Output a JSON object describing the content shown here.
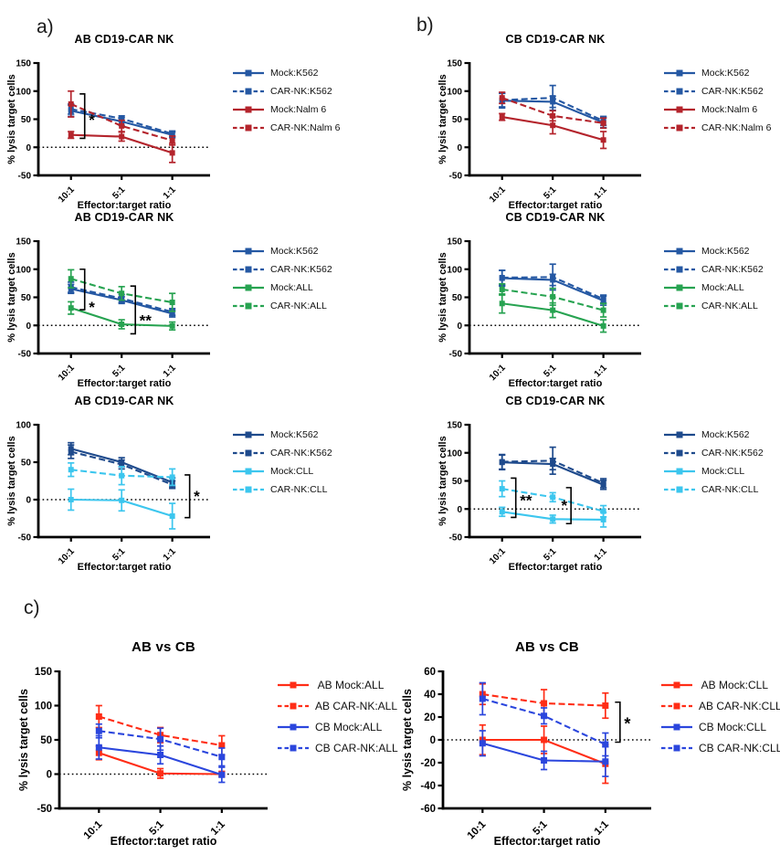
{
  "panels": {
    "a": "a)",
    "b": "b)",
    "c": "c)"
  },
  "chart_data": [
    {
      "type": "line",
      "panel": "a",
      "title": "AB CD19-CAR NK",
      "xlabel": "Effector:target ratio",
      "ylabel": "% lysis target cells",
      "categories": [
        "10:1",
        "5:1",
        "1:1"
      ],
      "ylim": [
        -50,
        150
      ],
      "yticks": [
        150,
        100,
        50,
        0,
        -50
      ],
      "zero_line": true,
      "series": [
        {
          "name": "Mock:K562",
          "color": "#2558A3",
          "dash": false,
          "values": [
            65,
            46,
            22
          ],
          "errors": [
            10,
            7,
            5
          ]
        },
        {
          "name": "CAR-NK:K562",
          "color": "#2558A3",
          "dash": true,
          "values": [
            68,
            51,
            24
          ],
          "errors": [
            9,
            5,
            5
          ]
        },
        {
          "name": "Mock:Nalm 6",
          "color": "#B4242C",
          "dash": false,
          "values": [
            22,
            19,
            -10
          ],
          "errors": [
            6,
            8,
            17
          ]
        },
        {
          "name": "CAR-NK:Nalm 6",
          "color": "#B4242C",
          "dash": true,
          "values": [
            77,
            38,
            12
          ],
          "errors": [
            23,
            10,
            8
          ]
        }
      ],
      "significance": [
        {
          "at": 0,
          "top": 95,
          "bottom": 16,
          "label": "*",
          "labelY": 55,
          "side": "right"
        }
      ]
    },
    {
      "type": "line",
      "panel": "a",
      "title": "AB CD19-CAR NK",
      "xlabel": "Effector:target ratio",
      "ylabel": "% lysis target cells",
      "categories": [
        "10:1",
        "5:1",
        "1:1"
      ],
      "ylim": [
        -50,
        150
      ],
      "yticks": [
        150,
        100,
        50,
        0,
        -50
      ],
      "zero_line": true,
      "series": [
        {
          "name": "Mock:K562",
          "color": "#2558A3",
          "dash": false,
          "values": [
            65,
            45,
            21
          ],
          "errors": [
            8,
            6,
            6
          ]
        },
        {
          "name": "CAR-NK:K562",
          "color": "#2558A3",
          "dash": true,
          "values": [
            68,
            48,
            24
          ],
          "errors": [
            9,
            7,
            6
          ]
        },
        {
          "name": "Mock:ALL",
          "color": "#27A351",
          "dash": false,
          "values": [
            31,
            2,
            -1
          ],
          "errors": [
            11,
            8,
            7
          ]
        },
        {
          "name": "CAR-NK:ALL",
          "color": "#27A351",
          "dash": true,
          "values": [
            83,
            57,
            41
          ],
          "errors": [
            16,
            12,
            16
          ]
        }
      ],
      "significance": [
        {
          "at": 0,
          "top": 100,
          "bottom": 28,
          "label": "*",
          "labelY": 38,
          "side": "right"
        },
        {
          "at": 1,
          "top": 70,
          "bottom": -15,
          "label": "**",
          "labelY": 15,
          "side": "right"
        }
      ]
    },
    {
      "type": "line",
      "panel": "a",
      "title": "AB CD19-CAR NK",
      "xlabel": "Effector:target ratio",
      "ylabel": "% lysis target cells",
      "categories": [
        "10:1",
        "5:1",
        "1:1"
      ],
      "ylim": [
        -50,
        100
      ],
      "yticks": [
        100,
        50,
        0,
        -50
      ],
      "zero_line": true,
      "series": [
        {
          "name": "Mock:K562",
          "color": "#1E4A8C",
          "dash": false,
          "values": [
            68,
            50,
            23
          ],
          "errors": [
            8,
            6,
            6
          ]
        },
        {
          "name": "CAR-NK:K562",
          "color": "#1E4A8C",
          "dash": true,
          "values": [
            64,
            47,
            20
          ],
          "errors": [
            9,
            6,
            5
          ]
        },
        {
          "name": "Mock:CLL",
          "color": "#3CC6EE",
          "dash": false,
          "values": [
            0,
            -1,
            -22
          ],
          "errors": [
            14,
            14,
            17
          ]
        },
        {
          "name": "CAR-NK:CLL",
          "color": "#3CC6EE",
          "dash": true,
          "values": [
            40,
            32,
            30
          ],
          "errors": [
            9,
            12,
            11
          ]
        }
      ],
      "significance": [
        {
          "at": 2,
          "offset": 19,
          "top": 33,
          "bottom": -24,
          "label": "*",
          "labelY": 9,
          "side": "right"
        }
      ]
    },
    {
      "type": "line",
      "panel": "b",
      "title": "CB CD19-CAR NK",
      "xlabel": "Effector:target ratio",
      "ylabel": "% lysis target cells",
      "categories": [
        "10:1",
        "5:1",
        "1:1"
      ],
      "ylim": [
        -50,
        150
      ],
      "yticks": [
        150,
        100,
        50,
        0,
        -50
      ],
      "zero_line": false,
      "series": [
        {
          "name": "Mock:K562",
          "color": "#2558A3",
          "dash": false,
          "values": [
            83,
            81,
            44
          ],
          "errors": [
            13,
            10,
            9
          ]
        },
        {
          "name": "CAR-NK:K562",
          "color": "#2558A3",
          "dash": true,
          "values": [
            84,
            88,
            47
          ],
          "errors": [
            12,
            22,
            8
          ]
        },
        {
          "name": "Mock:Nalm 6",
          "color": "#B4242C",
          "dash": false,
          "values": [
            54,
            39,
            13
          ],
          "errors": [
            6,
            15,
            15
          ]
        },
        {
          "name": "CAR-NK:Nalm 6",
          "color": "#B4242C",
          "dash": true,
          "values": [
            88,
            56,
            43
          ],
          "errors": [
            10,
            9,
            9
          ]
        }
      ],
      "significance": []
    },
    {
      "type": "line",
      "panel": "b",
      "title": "CB CD19-CAR NK",
      "xlabel": "Effector:target ratio",
      "ylabel": "% lysis target cells",
      "categories": [
        "10:1",
        "5:1",
        "1:1"
      ],
      "ylim": [
        -50,
        150
      ],
      "yticks": [
        150,
        100,
        50,
        0,
        -50
      ],
      "zero_line": true,
      "series": [
        {
          "name": "Mock:K562",
          "color": "#2558A3",
          "dash": false,
          "values": [
            84,
            81,
            44
          ],
          "errors": [
            14,
            10,
            8
          ]
        },
        {
          "name": "CAR-NK:K562",
          "color": "#2558A3",
          "dash": true,
          "values": [
            85,
            86,
            47
          ],
          "errors": [
            13,
            23,
            7
          ]
        },
        {
          "name": "Mock:ALL",
          "color": "#27A351",
          "dash": false,
          "values": [
            39,
            27,
            -1
          ],
          "errors": [
            17,
            13,
            11
          ]
        },
        {
          "name": "CAR-NK:ALL",
          "color": "#27A351",
          "dash": true,
          "values": [
            64,
            51,
            27
          ],
          "errors": [
            10,
            15,
            12
          ]
        }
      ],
      "significance": []
    },
    {
      "type": "line",
      "panel": "b",
      "title": "CB CD19-CAR NK",
      "xlabel": "Effector:target ratio",
      "ylabel": "% lysis target cells",
      "categories": [
        "10:1",
        "5:1",
        "1:1"
      ],
      "ylim": [
        -50,
        150
      ],
      "yticks": [
        150,
        100,
        50,
        0,
        -50
      ],
      "zero_line": true,
      "series": [
        {
          "name": "Mock:K562",
          "color": "#1E4A8C",
          "dash": false,
          "values": [
            83,
            80,
            43
          ],
          "errors": [
            13,
            10,
            8
          ]
        },
        {
          "name": "CAR-NK:K562",
          "color": "#1E4A8C",
          "dash": true,
          "values": [
            84,
            86,
            46
          ],
          "errors": [
            13,
            24,
            8
          ]
        },
        {
          "name": "Mock:CLL",
          "color": "#3CC6EE",
          "dash": false,
          "values": [
            -5,
            -18,
            -19
          ],
          "errors": [
            8,
            7,
            13
          ]
        },
        {
          "name": "CAR-NK:CLL",
          "color": "#3CC6EE",
          "dash": true,
          "values": [
            36,
            21,
            -4
          ],
          "errors": [
            14,
            8,
            10
          ]
        }
      ],
      "significance": [
        {
          "at": 0,
          "top": 55,
          "bottom": -15,
          "label": "**",
          "labelY": 21,
          "side": "right"
        },
        {
          "at": 1,
          "offset": 20,
          "top": 38,
          "bottom": -26,
          "label": "*",
          "labelY": 12,
          "side": "left"
        }
      ]
    },
    {
      "type": "line",
      "panel": "c",
      "title": "AB vs CB",
      "xlabel": "Effector:target ratio",
      "ylabel": "% lysis target cells",
      "categories": [
        "10:1",
        "5:1",
        "1:1"
      ],
      "ylim": [
        -50,
        150
      ],
      "yticks": [
        150,
        100,
        50,
        0,
        -50
      ],
      "zero_line": true,
      "series": [
        {
          "name": " AB Mock:ALL",
          "color": "#FF2D16",
          "dash": false,
          "values": [
            31,
            1,
            0
          ],
          "errors": [
            10,
            7,
            4
          ]
        },
        {
          "name": "AB CAR-NK:ALL",
          "color": "#FF2D16",
          "dash": true,
          "values": [
            84,
            57,
            42
          ],
          "errors": [
            16,
            11,
            14
          ]
        },
        {
          "name": "CB Mock:ALL",
          "color": "#2B46DD",
          "dash": false,
          "values": [
            39,
            28,
            -1
          ],
          "errors": [
            17,
            13,
            11
          ]
        },
        {
          "name": "CB CAR-NK:ALL",
          "color": "#2B46DD",
          "dash": true,
          "values": [
            63,
            51,
            25
          ],
          "errors": [
            10,
            16,
            13
          ]
        }
      ],
      "significance": []
    },
    {
      "type": "line",
      "panel": "c",
      "title": "AB vs CB",
      "xlabel": "Effector:target ratio",
      "ylabel": "% lysis target cells",
      "categories": [
        "10:1",
        "5:1",
        "1:1"
      ],
      "ylim": [
        -60,
        60
      ],
      "yticks": [
        60,
        40,
        20,
        0,
        -20,
        -40,
        -60
      ],
      "zero_line": true,
      "series": [
        {
          "name": " AB Mock:CLL",
          "color": "#FF2D16",
          "dash": false,
          "values": [
            0,
            0,
            -21
          ],
          "errors": [
            13,
            12,
            17
          ]
        },
        {
          "name": "AB CAR-NK:CLL",
          "color": "#FF2D16",
          "dash": true,
          "values": [
            40,
            32,
            30
          ],
          "errors": [
            9,
            12,
            11
          ]
        },
        {
          "name": "CB Mock:CLL",
          "color": "#2B46DD",
          "dash": false,
          "values": [
            -3,
            -18,
            -19
          ],
          "errors": [
            11,
            8,
            13
          ]
        },
        {
          "name": "CB CAR-NK:CLL",
          "color": "#2B46DD",
          "dash": true,
          "values": [
            36,
            21,
            -4
          ],
          "errors": [
            14,
            7,
            10
          ]
        }
      ],
      "significance": [
        {
          "at": 2,
          "offset": 16,
          "top": 33,
          "bottom": -2,
          "label": "*",
          "labelY": 17,
          "side": "right"
        }
      ]
    }
  ]
}
